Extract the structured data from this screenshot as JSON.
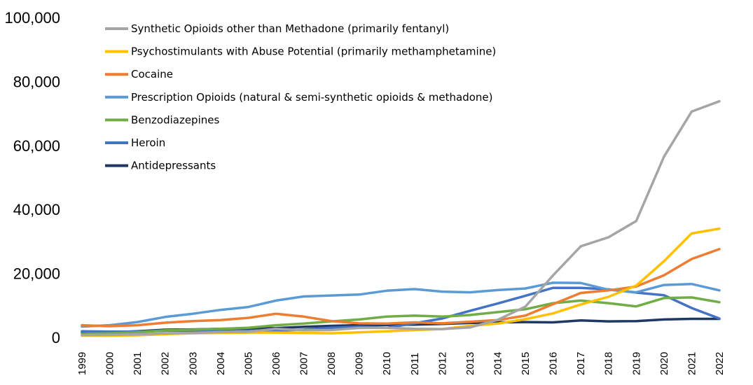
{
  "chart_data": {
    "type": "line",
    "title": "",
    "xlabel": "",
    "ylabel": "",
    "ylim": [
      0,
      100000
    ],
    "yticks": [
      "0",
      "20,000",
      "40,000",
      "60,000",
      "80,000",
      "100,000"
    ],
    "ytick_values": [
      0,
      20000,
      40000,
      60000,
      80000,
      100000
    ],
    "x": [
      "1999",
      "2000",
      "2001",
      "2002",
      "2003",
      "2004",
      "2005",
      "2006",
      "2007",
      "2008",
      "2009",
      "2010",
      "2011",
      "2012",
      "2013",
      "2014",
      "2015",
      "2016",
      "2017",
      "2018",
      "2019",
      "2020",
      "2021",
      "2022"
    ],
    "grid": false,
    "legend_position": "top-left",
    "series": [
      {
        "name": "Synthetic Opioids other than Methadone (primarily fentanyl)",
        "color": "#a5a5a5",
        "values": [
          730,
          780,
          960,
          1300,
          1400,
          1660,
          1740,
          2700,
          2200,
          2300,
          2950,
          3000,
          2700,
          2600,
          3100,
          5500,
          9600,
          19400,
          28500,
          31300,
          36400,
          56500,
          70600,
          73800
        ]
      },
      {
        "name": "Psychostimulants with Abuse Potential (primarily methamphetamine)",
        "color": "#ffc000",
        "values": [
          550,
          550,
          650,
          1000,
          1300,
          1400,
          1500,
          1500,
          1400,
          1300,
          1600,
          1900,
          2300,
          2600,
          3600,
          4300,
          5700,
          7500,
          10300,
          12700,
          16200,
          23800,
          32500,
          34000
        ]
      },
      {
        "name": "Cocaine",
        "color": "#ed7d31",
        "values": [
          3800,
          3500,
          3800,
          4600,
          5100,
          5400,
          6100,
          7400,
          6500,
          5100,
          4400,
          4300,
          4700,
          4400,
          4900,
          5400,
          6800,
          10400,
          13900,
          14700,
          15900,
          19400,
          24500,
          27600
        ]
      },
      {
        "name": "Prescription Opioids (natural & semi-synthetic opioids & methadone)",
        "color": "#5b9bd5",
        "values": [
          3400,
          3800,
          4800,
          6400,
          7400,
          8600,
          9500,
          11500,
          12800,
          13100,
          13400,
          14600,
          15100,
          14300,
          14100,
          14800,
          15300,
          17100,
          17000,
          14900,
          14100,
          16400,
          16700,
          14700
        ]
      },
      {
        "name": "Benzodiazepines",
        "color": "#70ad47",
        "values": [
          1100,
          1300,
          1600,
          2200,
          2400,
          2700,
          3000,
          3800,
          4300,
          5000,
          5600,
          6500,
          6800,
          6500,
          7000,
          7900,
          8800,
          10700,
          11500,
          10700,
          9700,
          12300,
          12500,
          11000
        ]
      },
      {
        "name": "Heroin",
        "color": "#4472c4",
        "values": [
          1900,
          1800,
          1800,
          2100,
          2100,
          1900,
          2000,
          2100,
          2400,
          3000,
          3300,
          3000,
          4400,
          5900,
          8300,
          10600,
          13000,
          15500,
          15500,
          15000,
          14000,
          13200,
          9200,
          5900
        ]
      },
      {
        "name": "Antidepressants",
        "color": "#203864",
        "values": [
          1700,
          1600,
          1900,
          2400,
          2500,
          2700,
          2800,
          2900,
          3300,
          3600,
          3800,
          3900,
          4000,
          4200,
          4500,
          4700,
          4800,
          4700,
          5300,
          5000,
          5100,
          5600,
          5800,
          5800
        ]
      }
    ]
  }
}
